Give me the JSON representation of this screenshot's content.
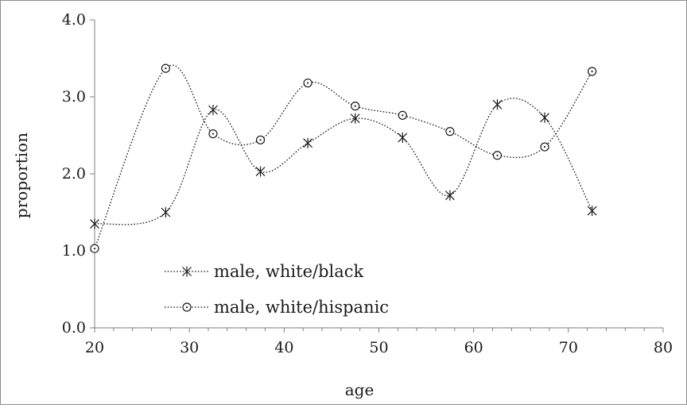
{
  "chart_data": {
    "type": "scatter",
    "xlabel": "age",
    "ylabel": "proportion",
    "xlim": [
      20,
      80
    ],
    "ylim": [
      0.0,
      4.0
    ],
    "x_ticks": [
      "20",
      "30",
      "40",
      "50",
      "60",
      "70",
      "80"
    ],
    "y_ticks": [
      "0.0",
      "1.0",
      "2.0",
      "3.0",
      "4.0"
    ],
    "grid": false,
    "legend_placement": "lower-left inside",
    "line_style": "dotted smoothed",
    "color": "#1a1a1a",
    "series": [
      {
        "name": "male, white/black",
        "marker": "asterisk",
        "points": [
          [
            20,
            1.35
          ],
          [
            27.5,
            1.5
          ],
          [
            32.5,
            2.83
          ],
          [
            37.5,
            2.03
          ],
          [
            42.5,
            2.4
          ],
          [
            47.5,
            2.72
          ],
          [
            52.5,
            2.47
          ],
          [
            57.5,
            1.72
          ],
          [
            62.5,
            2.9
          ],
          [
            67.5,
            2.73
          ],
          [
            72.5,
            1.52
          ]
        ]
      },
      {
        "name": "male, white/hispanic",
        "marker": "circle-dot",
        "points": [
          [
            20,
            1.03
          ],
          [
            27.5,
            3.37
          ],
          [
            32.5,
            2.52
          ],
          [
            37.5,
            2.44
          ],
          [
            42.5,
            3.18
          ],
          [
            47.5,
            2.88
          ],
          [
            52.5,
            2.76
          ],
          [
            57.5,
            2.55
          ],
          [
            62.5,
            2.24
          ],
          [
            67.5,
            2.35
          ],
          [
            72.5,
            3.33
          ]
        ]
      }
    ]
  }
}
